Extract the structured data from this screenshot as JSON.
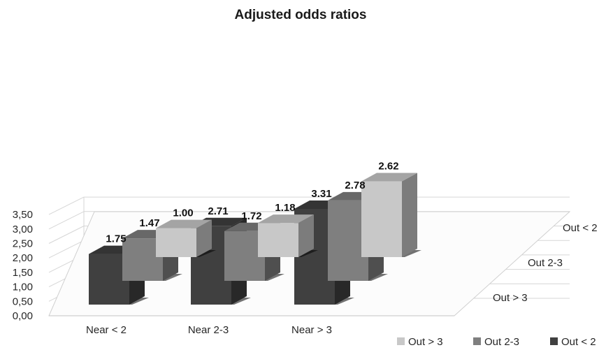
{
  "chart_data": {
    "type": "bar",
    "title": "Adjusted odds ratios",
    "categories": [
      "Near < 2",
      "Near 2-3",
      "Near > 3"
    ],
    "depth_labels": [
      "Out < 2",
      "Out 2-3",
      "Out > 3"
    ],
    "y_tick_labels": [
      "0,00",
      "0,50",
      "1,00",
      "1,50",
      "2,00",
      "2,50",
      "3,00",
      "3,50"
    ],
    "ylim": [
      0,
      3.5
    ],
    "ystep": 0.5,
    "grid": true,
    "legend_position": "bottom-right",
    "series": [
      {
        "name": "Out > 3",
        "color": "#c8c8c8",
        "values": [
          1.0,
          1.18,
          2.62
        ],
        "labels": [
          "1.00",
          "1.18",
          "2.62"
        ]
      },
      {
        "name": "Out 2-3",
        "color": "#7f7f7f",
        "values": [
          1.47,
          1.72,
          2.78
        ],
        "labels": [
          "1.47",
          "1.72",
          "2.78"
        ]
      },
      {
        "name": "Out < 2",
        "color": "#404040",
        "values": [
          1.75,
          2.71,
          3.31
        ],
        "labels": [
          "1.75",
          "2.71",
          "3.31"
        ]
      }
    ]
  }
}
